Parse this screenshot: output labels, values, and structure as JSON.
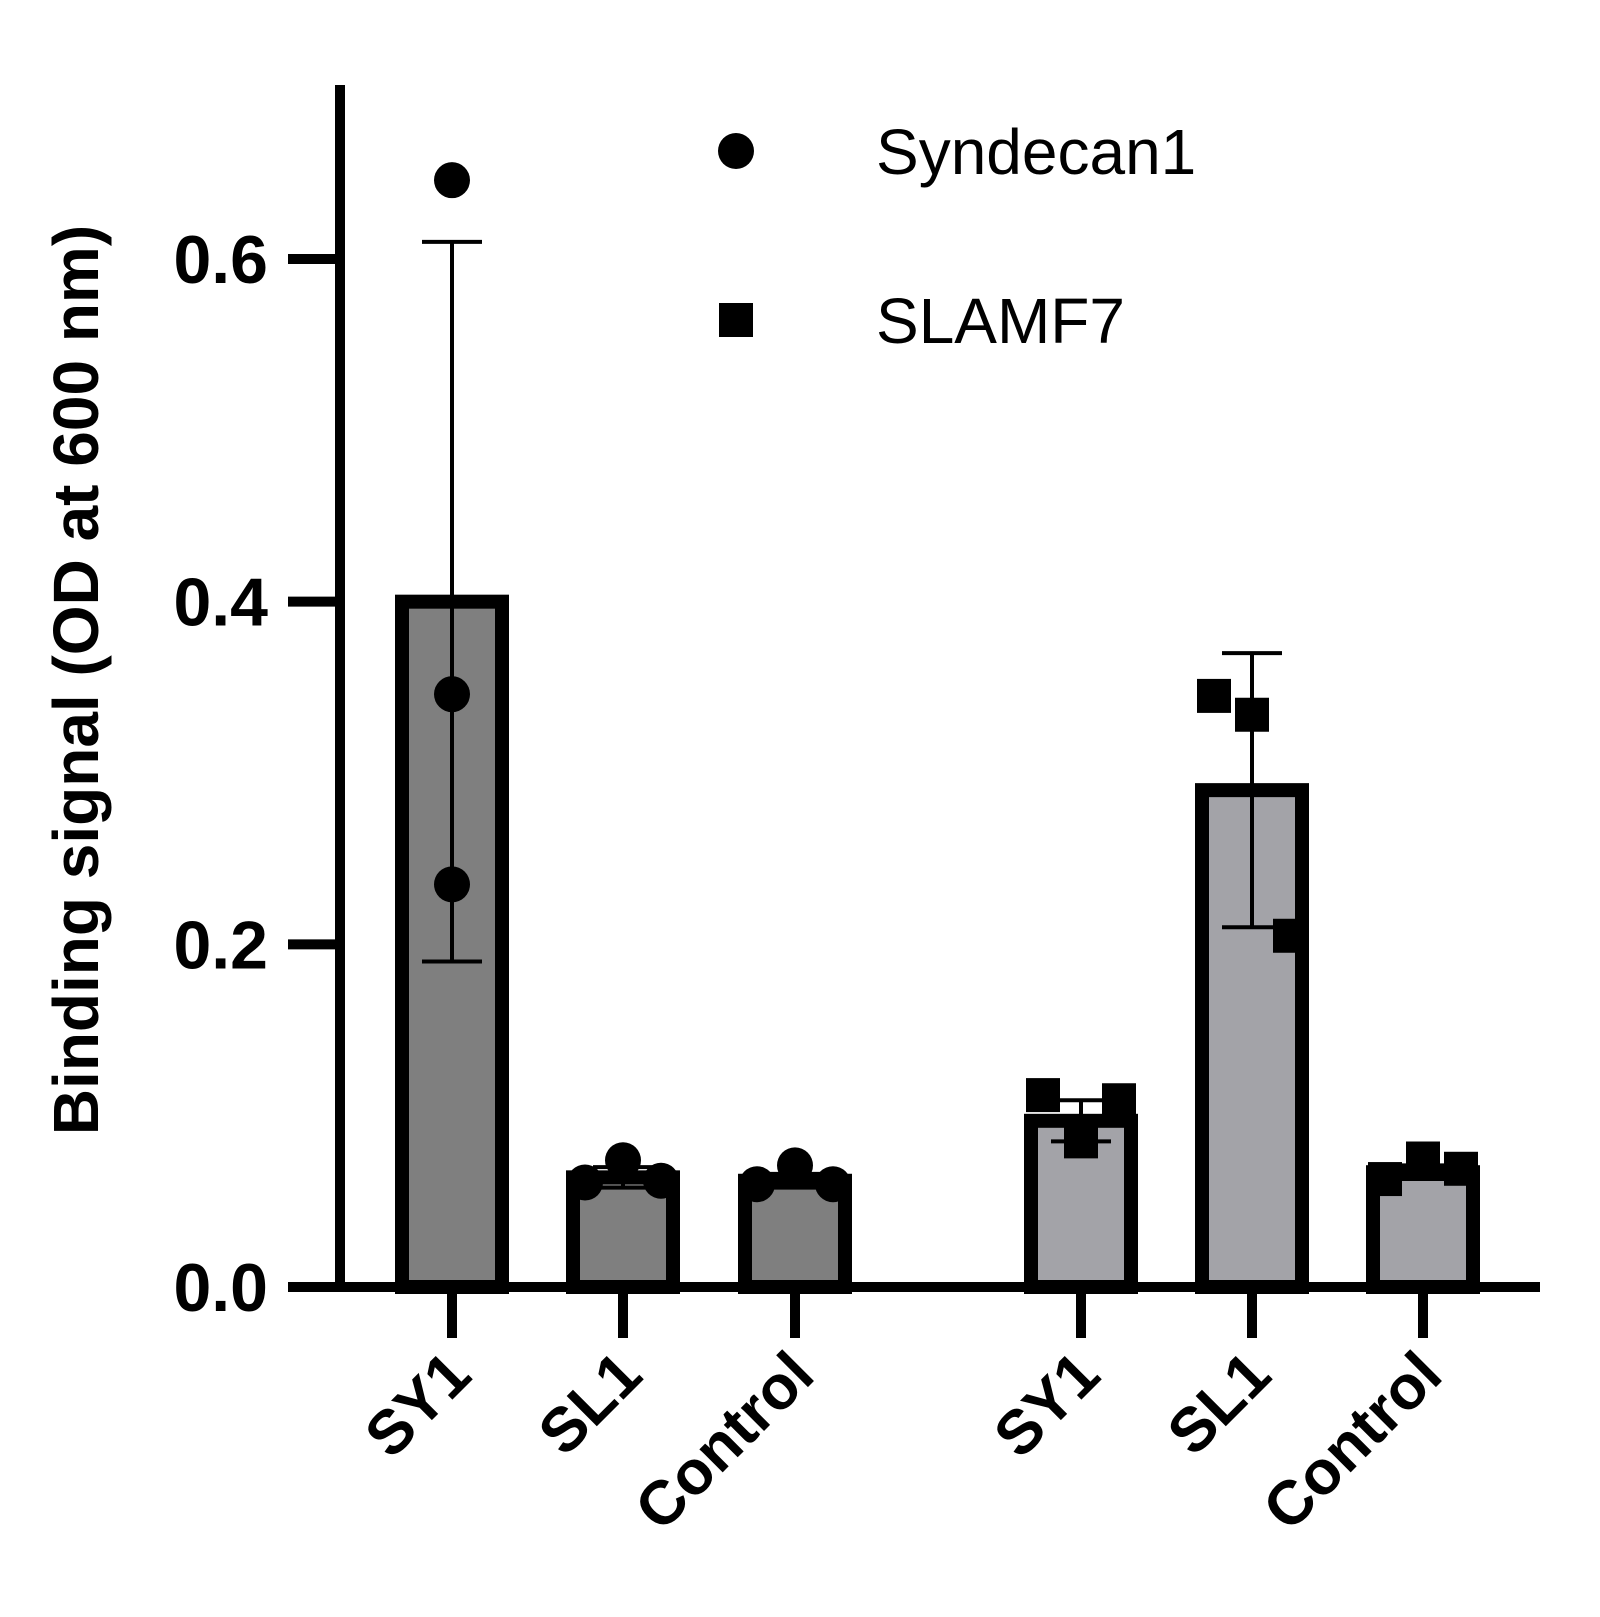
{
  "chart_data": {
    "type": "bar",
    "ylabel": "Binding signal (OD at 600 nm)",
    "xlabel": "",
    "ylim": [
      0,
      0.7
    ],
    "yticks": [
      0.0,
      0.2,
      0.4,
      0.6
    ],
    "ytick_labels": [
      "0.0",
      "0.2",
      "0.4",
      "0.6"
    ],
    "legend_position": "top-right",
    "legend": [
      {
        "name": "Syndecan1",
        "marker": "circle"
      },
      {
        "name": "SLAMF7",
        "marker": "square"
      }
    ],
    "series": [
      {
        "name": "Syndecan1",
        "marker": "circle",
        "bar_color": "#7f7f7f",
        "categories": [
          "SY1",
          "SL1",
          "Control"
        ],
        "values": [
          0.4,
          0.064,
          0.062
        ],
        "errors": [
          0.21,
          0.006,
          0.004
        ],
        "points": [
          [
            0.646,
            0.346,
            0.235
          ],
          [
            0.061,
            0.074,
            0.062
          ],
          [
            0.06,
            0.071,
            0.06
          ]
        ]
      },
      {
        "name": "SLAMF7",
        "marker": "square",
        "bar_color": "#a3a3a8",
        "categories": [
          "SY1",
          "SL1",
          "Control"
        ],
        "values": [
          0.097,
          0.29,
          0.067
        ],
        "errors": [
          0.012,
          0.08,
          0.004
        ],
        "points": [
          [
            0.112,
            0.085,
            0.109
          ],
          [
            0.345,
            0.334,
            0.205
          ],
          [
            0.063,
            0.075,
            0.069
          ]
        ]
      }
    ]
  }
}
